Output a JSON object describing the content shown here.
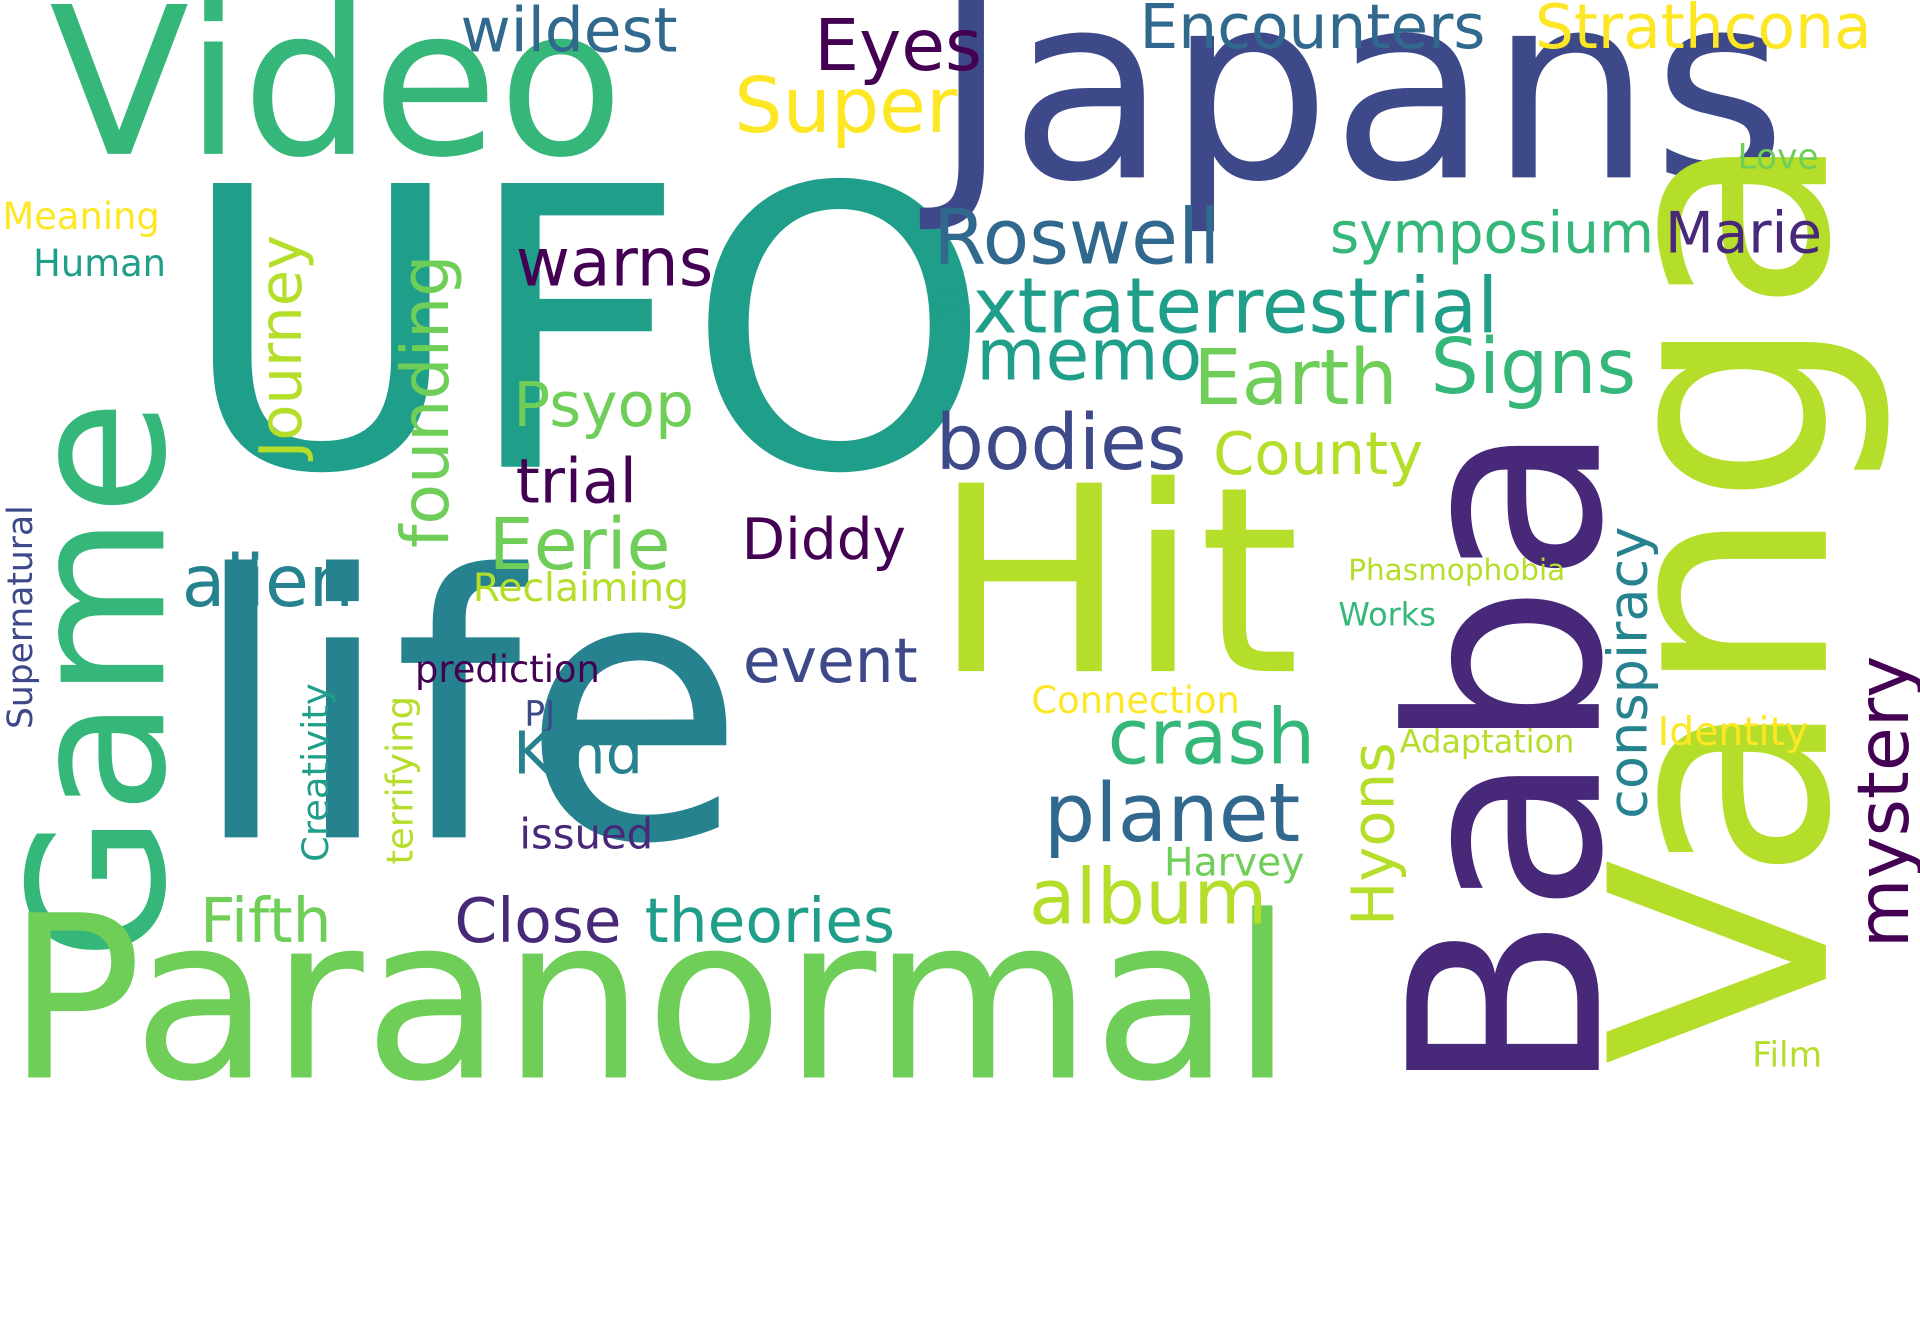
{
  "palette": {
    "dark_purple": "#440154",
    "purple": "#482878",
    "indigo": "#3e4989",
    "blue": "#31688e",
    "teal_blue": "#26828e",
    "teal": "#1f9e89",
    "green": "#35b779",
    "light_green": "#6ece58",
    "lime": "#b5de2b",
    "yellow": "#fde725"
  },
  "words": [
    {
      "key": "ufo",
      "text": "UFO"
    },
    {
      "key": "japans",
      "text": "Japans"
    },
    {
      "key": "video",
      "text": "Video"
    },
    {
      "key": "life",
      "text": "life"
    },
    {
      "key": "game",
      "text": "Game"
    },
    {
      "key": "hit",
      "text": "Hit"
    },
    {
      "key": "paranormal",
      "text": "Paranormal"
    },
    {
      "key": "baba",
      "text": "Baba"
    },
    {
      "key": "vanga",
      "text": "Vanga"
    },
    {
      "key": "wildest",
      "text": "wildest"
    },
    {
      "key": "eyes",
      "text": "Eyes"
    },
    {
      "key": "encounters",
      "text": "Encounters"
    },
    {
      "key": "strathcona",
      "text": "Strathcona"
    },
    {
      "key": "super",
      "text": "Super"
    },
    {
      "key": "love",
      "text": "Love"
    },
    {
      "key": "meaning",
      "text": "Meaning"
    },
    {
      "key": "human",
      "text": "Human"
    },
    {
      "key": "roswell",
      "text": "Roswell"
    },
    {
      "key": "symposium",
      "text": "symposium"
    },
    {
      "key": "marie",
      "text": "Marie"
    },
    {
      "key": "warns",
      "text": "warns"
    },
    {
      "key": "extraterrestrial",
      "text": "extraterrestrial"
    },
    {
      "key": "journey",
      "text": "Journey"
    },
    {
      "key": "founding",
      "text": "founding"
    },
    {
      "key": "memo",
      "text": "memo"
    },
    {
      "key": "earth",
      "text": "Earth"
    },
    {
      "key": "signs",
      "text": "Signs"
    },
    {
      "key": "psyop",
      "text": "Psyop"
    },
    {
      "key": "bodies",
      "text": "bodies"
    },
    {
      "key": "county",
      "text": "County"
    },
    {
      "key": "trial",
      "text": "trial"
    },
    {
      "key": "conspiracy",
      "text": "conspiracy"
    },
    {
      "key": "eerie",
      "text": "Eerie"
    },
    {
      "key": "diddy",
      "text": "Diddy"
    },
    {
      "key": "alien",
      "text": "alien"
    },
    {
      "key": "reclaiming",
      "text": "Reclaiming"
    },
    {
      "key": "phasmophobia",
      "text": "Phasmophobia"
    },
    {
      "key": "works",
      "text": "Works"
    },
    {
      "key": "supernatural",
      "text": "Supernatural"
    },
    {
      "key": "creativity",
      "text": "Creativity"
    },
    {
      "key": "terrifying",
      "text": "terrifying"
    },
    {
      "key": "prediction",
      "text": "prediction"
    },
    {
      "key": "event",
      "text": "event"
    },
    {
      "key": "mystery",
      "text": "mystery"
    },
    {
      "key": "pj",
      "text": "PJ"
    },
    {
      "key": "connection",
      "text": "Connection"
    },
    {
      "key": "kind",
      "text": "Kind"
    },
    {
      "key": "crash",
      "text": "crash"
    },
    {
      "key": "adaptation",
      "text": "Adaptation"
    },
    {
      "key": "identity",
      "text": "Identity"
    },
    {
      "key": "hyons",
      "text": "Hyons"
    },
    {
      "key": "planet",
      "text": "planet"
    },
    {
      "key": "issued",
      "text": "issued"
    },
    {
      "key": "harvey",
      "text": "Harvey"
    },
    {
      "key": "album",
      "text": "album"
    },
    {
      "key": "fifth",
      "text": "Fifth"
    },
    {
      "key": "close",
      "text": "Close"
    },
    {
      "key": "theories",
      "text": "theories"
    },
    {
      "key": "film",
      "text": "Film"
    }
  ]
}
